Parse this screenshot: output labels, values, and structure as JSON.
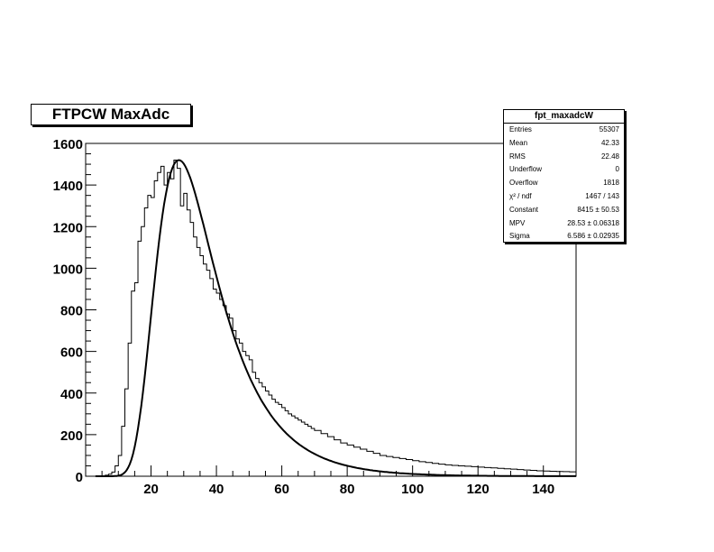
{
  "chart_data": {
    "type": "line",
    "title": "FTPCW MaxAdc",
    "xlabel": "",
    "ylabel": "",
    "xlim": [
      0,
      150
    ],
    "ylim": [
      0,
      1600
    ],
    "x_ticks": [
      20,
      40,
      60,
      80,
      100,
      120,
      140
    ],
    "y_ticks": [
      0,
      200,
      400,
      600,
      800,
      1000,
      1200,
      1400,
      1600
    ],
    "x_tick_labels": [
      "20",
      "40",
      "60",
      "80",
      "100",
      "120",
      "140"
    ],
    "y_tick_labels": [
      "0",
      "200",
      "400",
      "600",
      "800",
      "1000",
      "1200",
      "1400",
      "1600"
    ],
    "histogram": {
      "name": "fpt_maxadcW",
      "bin_width": 1,
      "x": [
        5,
        6,
        7,
        8,
        9,
        10,
        11,
        12,
        13,
        14,
        15,
        16,
        17,
        18,
        19,
        20,
        21,
        22,
        23,
        24,
        25,
        26,
        27,
        28,
        29,
        30,
        31,
        32,
        33,
        34,
        35,
        36,
        37,
        38,
        39,
        40,
        41,
        42,
        43,
        44,
        45,
        46,
        47,
        48,
        49,
        50,
        51,
        52,
        53,
        54,
        55,
        56,
        57,
        58,
        59,
        60,
        61,
        62,
        63,
        64,
        65,
        66,
        67,
        68,
        69,
        70,
        72,
        74,
        76,
        78,
        80,
        82,
        84,
        86,
        88,
        90,
        92,
        94,
        96,
        98,
        100,
        102,
        104,
        106,
        108,
        110,
        112,
        114,
        116,
        118,
        120,
        122,
        124,
        126,
        128,
        130,
        132,
        134,
        136,
        138,
        140,
        142,
        144,
        146,
        148,
        150
      ],
      "y": [
        2,
        5,
        10,
        20,
        50,
        100,
        240,
        420,
        640,
        890,
        930,
        1130,
        1200,
        1290,
        1350,
        1340,
        1420,
        1460,
        1490,
        1400,
        1460,
        1430,
        1520,
        1480,
        1300,
        1360,
        1280,
        1220,
        1150,
        1100,
        1060,
        1020,
        990,
        950,
        900,
        880,
        850,
        820,
        780,
        760,
        700,
        660,
        640,
        600,
        580,
        560,
        500,
        470,
        450,
        430,
        410,
        390,
        370,
        355,
        345,
        330,
        315,
        300,
        290,
        280,
        270,
        260,
        250,
        240,
        230,
        220,
        205,
        190,
        175,
        160,
        150,
        140,
        130,
        120,
        110,
        100,
        95,
        90,
        85,
        80,
        75,
        70,
        66,
        62,
        58,
        55,
        52,
        50,
        48,
        46,
        44,
        42,
        40,
        38,
        36,
        34,
        32,
        30,
        28,
        26,
        25,
        24,
        23,
        22,
        21,
        20
      ]
    },
    "fit": {
      "function": "landau",
      "constant": 8415,
      "mpv": 28.53,
      "sigma": 6.586
    },
    "legend_position": "top-right"
  },
  "stats": {
    "title": "fpt_maxadcW",
    "rows": [
      {
        "label": "Entries",
        "value": "55307"
      },
      {
        "label": "Mean",
        "value": "42.33"
      },
      {
        "label": "RMS",
        "value": "22.48"
      },
      {
        "label": "Underflow",
        "value": "0"
      },
      {
        "label": "Overflow",
        "value": "1818"
      },
      {
        "label": "χ² / ndf",
        "value": "1467 / 143"
      },
      {
        "label": "Constant",
        "value": "8415 ± 50.53"
      },
      {
        "label": "MPV",
        "value": "28.53 ± 0.06318"
      },
      {
        "label": "Sigma",
        "value": "6.586 ± 0.02935"
      }
    ]
  }
}
